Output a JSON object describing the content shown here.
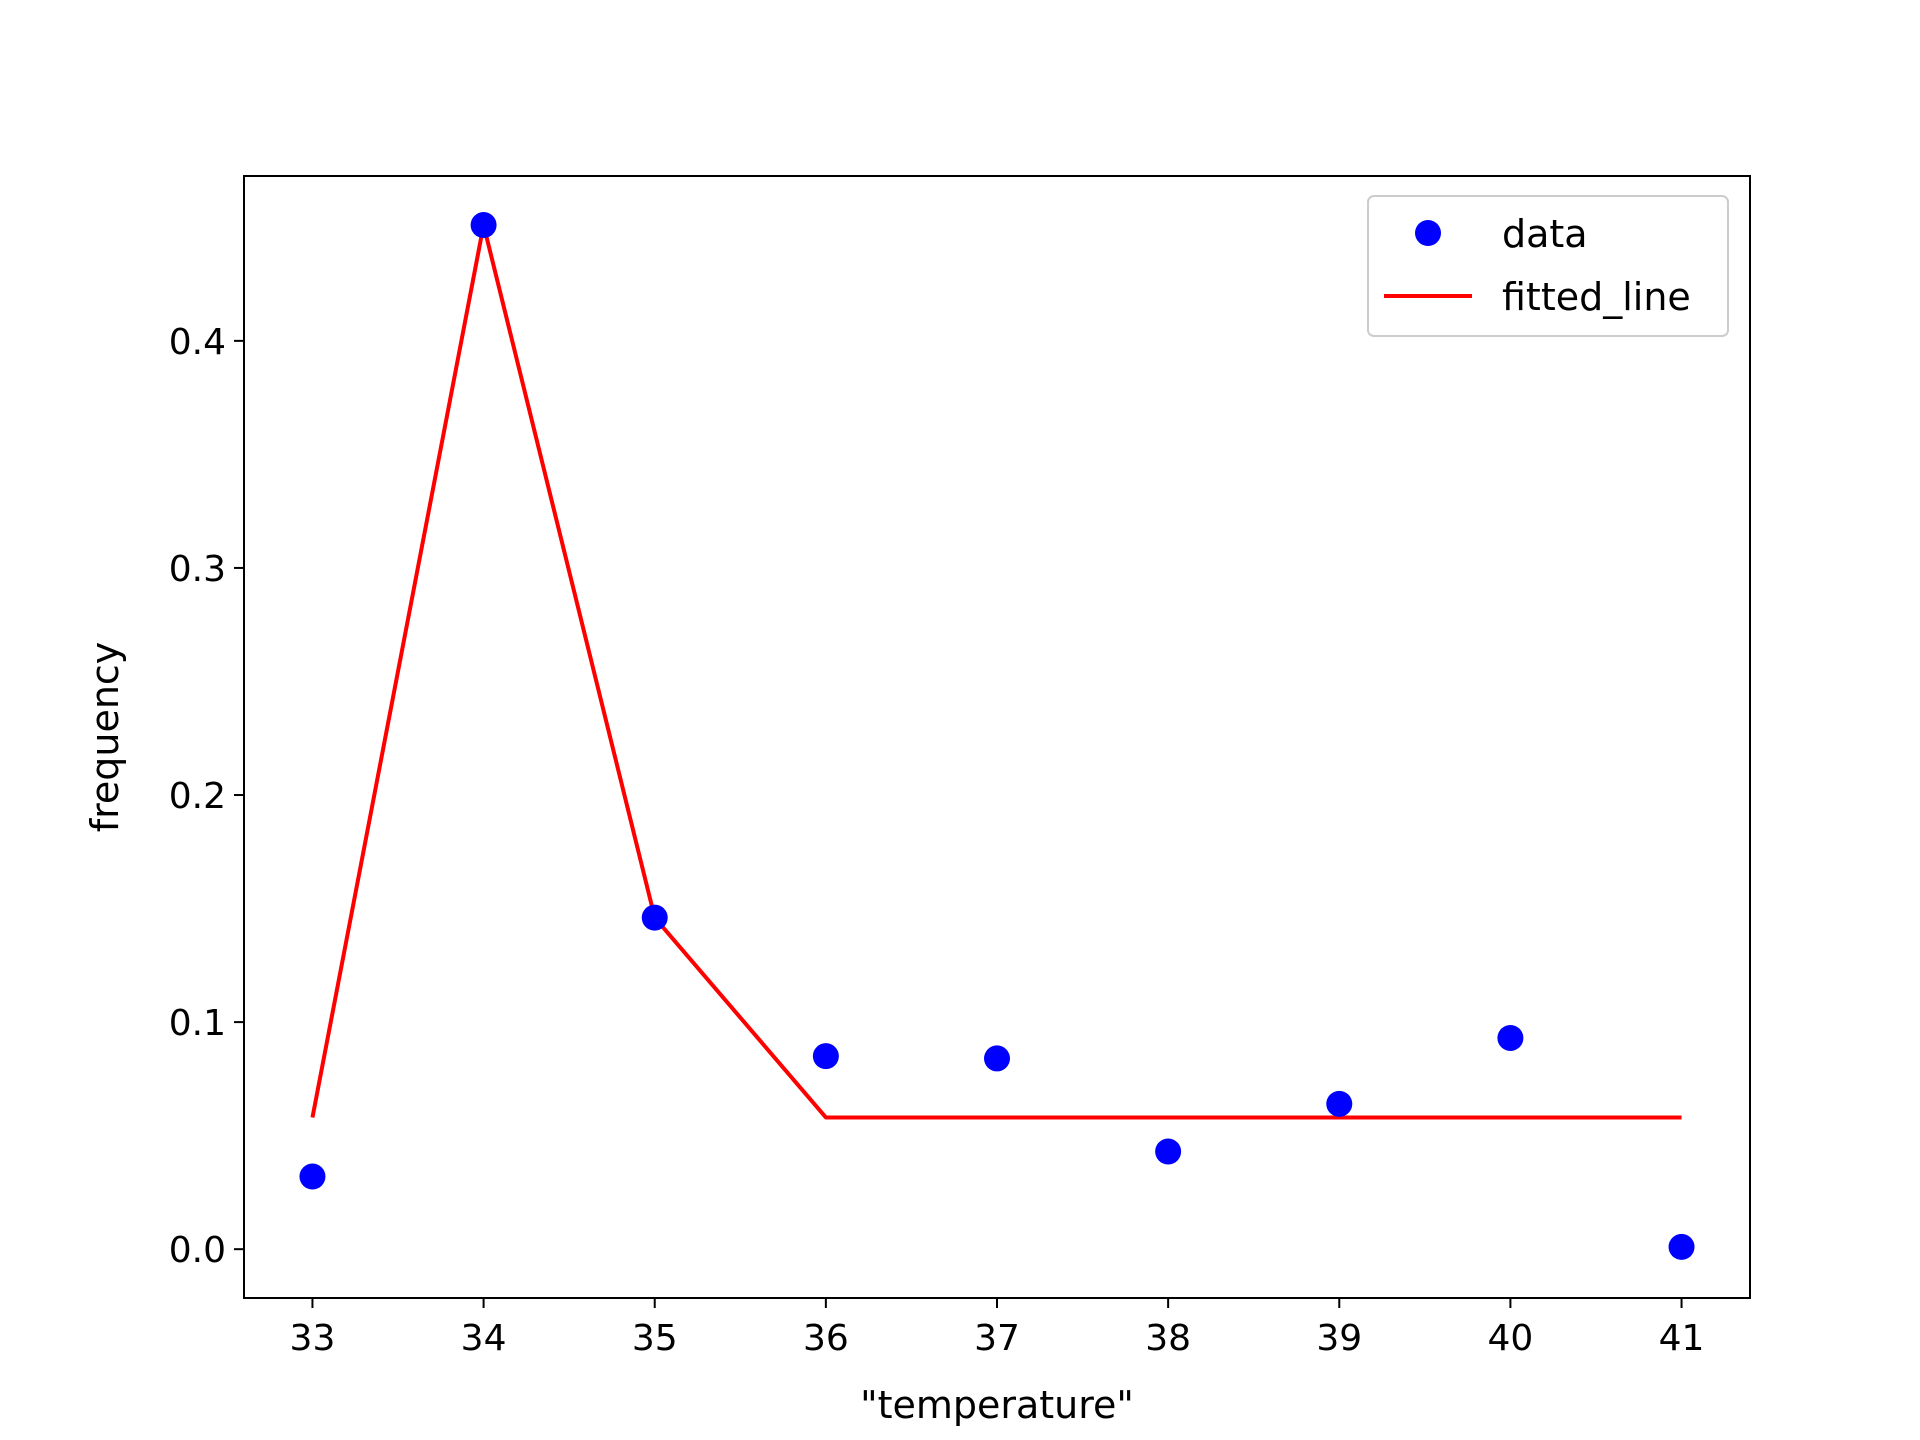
{
  "chart_data": {
    "type": "scatter",
    "title": "",
    "xlabel": "\"temperature\"",
    "ylabel": "frequency",
    "xlim": [
      32.6,
      41.4
    ],
    "ylim": [
      -0.0215,
      0.4726
    ],
    "xticks": [
      33,
      34,
      35,
      36,
      37,
      38,
      39,
      40,
      41
    ],
    "xtick_labels": [
      "33",
      "34",
      "35",
      "36",
      "37",
      "38",
      "39",
      "40",
      "41"
    ],
    "yticks": [
      0.0,
      0.1,
      0.2,
      0.3,
      0.4
    ],
    "ytick_labels": [
      "0.0",
      "0.1",
      "0.2",
      "0.3",
      "0.4"
    ],
    "grid": false,
    "legend_position": "upper right",
    "series": [
      {
        "name": "data",
        "kind": "markers",
        "color": "#0000ff",
        "x": [
          33,
          34,
          35,
          36,
          37,
          38,
          39,
          40,
          41
        ],
        "y": [
          0.032,
          0.451,
          0.146,
          0.085,
          0.084,
          0.043,
          0.064,
          0.093,
          0.001
        ]
      },
      {
        "name": "fitted_line",
        "kind": "line",
        "color": "#ff0000",
        "x": [
          33,
          34,
          35,
          36,
          37,
          38,
          39,
          40,
          41
        ],
        "y": [
          0.058,
          0.451,
          0.146,
          0.058,
          0.058,
          0.058,
          0.058,
          0.058,
          0.058
        ]
      }
    ]
  }
}
